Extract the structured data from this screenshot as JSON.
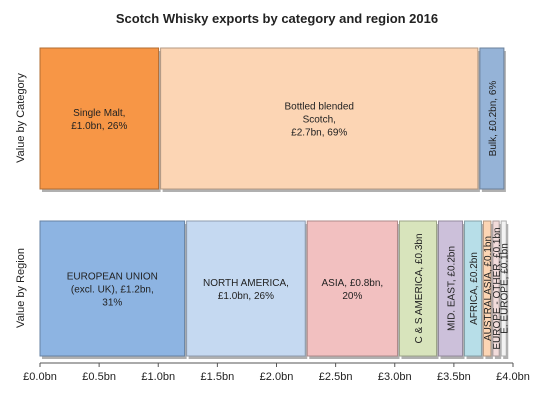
{
  "chart_data": {
    "type": "bar",
    "orientation": "horizontal-stacked",
    "title": "Scotch Whisky exports by category and region 2016",
    "xlim": [
      0,
      4.0
    ],
    "x_ticks": [
      "£0.0bn",
      "£0.5bn",
      "£1.0bn",
      "£1.5bn",
      "£2.0bn",
      "£2.5bn",
      "£3.0bn",
      "£3.5bn",
      "£4.0bn"
    ],
    "rows": [
      {
        "name": "Value by Category",
        "segments": [
          {
            "label": [
              "Single Malt,",
              "£1.0bn, 26%"
            ],
            "value": 1.02,
            "color": "#f79646",
            "text_orientation": "horizontal"
          },
          {
            "label": [
              "Bottled blended",
              "Scotch,",
              "£2.7bn, 69%"
            ],
            "value": 2.7,
            "color": "#fcd5b4",
            "text_orientation": "horizontal"
          },
          {
            "label": [
              "Bulk, £0.2bn, 6%"
            ],
            "value": 0.22,
            "color": "#95b3d7",
            "text_orientation": "vertical"
          }
        ]
      },
      {
        "name": "Value by Region",
        "segments": [
          {
            "label": [
              "EUROPEAN UNION",
              "(excl. UK), £1.2bn,",
              "31%"
            ],
            "value": 1.24,
            "color": "#8db4e2",
            "text_orientation": "horizontal"
          },
          {
            "label": [
              "NORTH AMERICA,",
              "£1.0bn, 26%"
            ],
            "value": 1.02,
            "color": "#c5d9f1",
            "text_orientation": "horizontal"
          },
          {
            "label": [
              "ASIA, £0.8bn,",
              "20%"
            ],
            "value": 0.78,
            "color": "#f2c0c0",
            "text_orientation": "horizontal"
          },
          {
            "label": [
              "C & S AMERICA, £0.3bn"
            ],
            "value": 0.33,
            "color": "#d8e4bc",
            "text_orientation": "vertical"
          },
          {
            "label": [
              "MID. EAST, £0.2bn"
            ],
            "value": 0.22,
            "color": "#ccc0da",
            "text_orientation": "vertical"
          },
          {
            "label": [
              "AFRICA, £0.2bn"
            ],
            "value": 0.16,
            "color": "#b7dee8",
            "text_orientation": "vertical"
          },
          {
            "label": [
              "AUSTRALASIA, £0.1bn"
            ],
            "value": 0.08,
            "color": "#fcd5b4",
            "text_orientation": "vertical"
          },
          {
            "label": [
              "EUROPE - OTHER, £0.1bn"
            ],
            "value": 0.07,
            "color": "#f2dcdb",
            "text_orientation": "vertical"
          },
          {
            "label": [
              "E. EUROPE, £0.1bn"
            ],
            "value": 0.06,
            "color": "#f2f2f2",
            "text_orientation": "vertical"
          }
        ]
      }
    ],
    "grid": false,
    "legend": "none"
  }
}
